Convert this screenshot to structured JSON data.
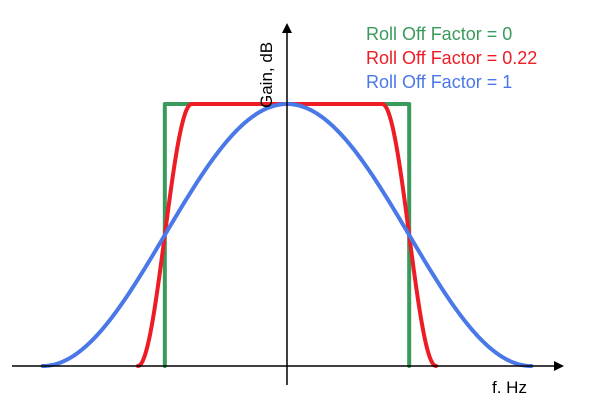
{
  "chart_data": {
    "type": "line",
    "title": "",
    "xlabel": "f. Hz",
    "ylabel": "Gain, dB",
    "grid": false,
    "legend_position": "top-right",
    "xlim": [
      -1.0,
      1.0
    ],
    "ylim": [
      0,
      1.0
    ],
    "series": [
      {
        "name": "Roll Off Factor = 0",
        "color": "#3a9a5c",
        "roll_off": 0
      },
      {
        "name": "Roll Off Factor = 0.22",
        "color": "#ee1c25",
        "roll_off": 0.22
      },
      {
        "name": "Roll Off Factor = 1",
        "color": "#4a78e8",
        "roll_off": 1
      }
    ]
  }
}
